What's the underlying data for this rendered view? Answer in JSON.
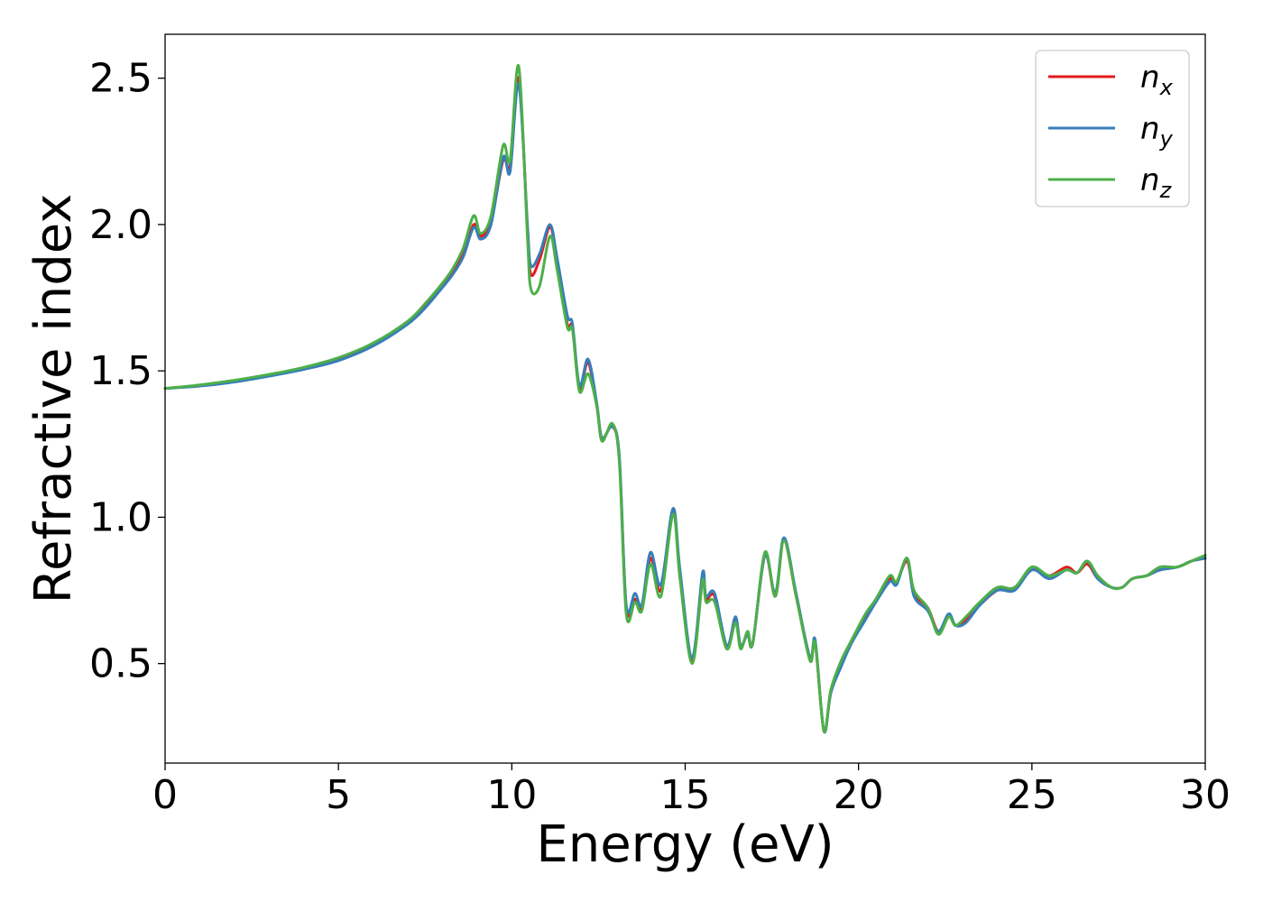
{
  "chart_data": {
    "type": "line",
    "title": "",
    "xlabel": "Energy (eV)",
    "ylabel": "Refractive index",
    "xlim": [
      0,
      30
    ],
    "ylim": [
      0.16,
      2.65
    ],
    "x_ticks": [
      0,
      5,
      10,
      15,
      20,
      25,
      30
    ],
    "x_tick_labels": [
      "0",
      "5",
      "10",
      "15",
      "20",
      "25",
      "30"
    ],
    "y_ticks": [
      0.5,
      1.0,
      1.5,
      2.0,
      2.5
    ],
    "y_tick_labels": [
      "0.5",
      "1.0",
      "1.5",
      "2.0",
      "2.5"
    ],
    "grid": false,
    "legend_position": "top-right",
    "series": [
      {
        "name": "n",
        "subscript": "x",
        "color": "#e41a1c",
        "x": [
          0,
          1,
          2,
          3,
          4,
          5,
          6,
          7,
          7.5,
          8,
          8.3,
          8.6,
          8.9,
          9.1,
          9.4,
          9.75,
          9.95,
          10.2,
          10.45,
          10.55,
          10.8,
          11.1,
          11.3,
          11.6,
          11.75,
          11.95,
          12.2,
          12.45,
          12.6,
          12.9,
          13.1,
          13.3,
          13.55,
          13.75,
          14.0,
          14.3,
          14.65,
          14.85,
          15.2,
          15.5,
          15.6,
          15.85,
          16.2,
          16.45,
          16.6,
          16.8,
          16.95,
          17.3,
          17.6,
          17.85,
          18.2,
          18.6,
          18.75,
          19.0,
          19.2,
          19.5,
          19.8,
          20.2,
          20.5,
          20.9,
          21.1,
          21.4,
          21.6,
          22.0,
          22.3,
          22.6,
          22.8,
          23.1,
          23.5,
          24.0,
          24.5,
          25.0,
          25.5,
          26.0,
          26.3,
          26.6,
          26.9,
          27.3,
          27.6,
          27.9,
          28.3,
          28.7,
          29.2,
          29.6,
          30.0
        ],
        "y": [
          1.44,
          1.45,
          1.465,
          1.485,
          1.51,
          1.54,
          1.59,
          1.665,
          1.72,
          1.79,
          1.84,
          1.9,
          2.0,
          1.96,
          2.01,
          2.22,
          2.2,
          2.5,
          1.99,
          1.83,
          1.88,
          1.99,
          1.88,
          1.66,
          1.65,
          1.44,
          1.53,
          1.38,
          1.27,
          1.31,
          1.2,
          0.69,
          0.72,
          0.69,
          0.86,
          0.75,
          1.02,
          0.8,
          0.51,
          0.8,
          0.72,
          0.73,
          0.56,
          0.65,
          0.56,
          0.6,
          0.57,
          0.87,
          0.73,
          0.92,
          0.73,
          0.52,
          0.57,
          0.27,
          0.4,
          0.5,
          0.58,
          0.66,
          0.72,
          0.79,
          0.78,
          0.85,
          0.74,
          0.69,
          0.61,
          0.66,
          0.63,
          0.65,
          0.7,
          0.75,
          0.76,
          0.82,
          0.8,
          0.83,
          0.81,
          0.84,
          0.79,
          0.76,
          0.76,
          0.79,
          0.8,
          0.82,
          0.83,
          0.85,
          0.86
        ]
      },
      {
        "name": "n",
        "subscript": "y",
        "color": "#377eb8",
        "x": [
          0,
          1,
          2,
          3,
          4,
          5,
          6,
          7,
          7.5,
          8,
          8.3,
          8.6,
          8.9,
          9.1,
          9.4,
          9.75,
          9.95,
          10.2,
          10.45,
          10.55,
          10.8,
          11.1,
          11.3,
          11.6,
          11.75,
          11.95,
          12.2,
          12.45,
          12.6,
          12.9,
          13.1,
          13.3,
          13.55,
          13.75,
          14.0,
          14.3,
          14.65,
          14.85,
          15.2,
          15.5,
          15.6,
          15.85,
          16.2,
          16.45,
          16.6,
          16.8,
          16.95,
          17.3,
          17.6,
          17.85,
          18.2,
          18.6,
          18.75,
          19.0,
          19.2,
          19.5,
          19.8,
          20.2,
          20.5,
          20.9,
          21.1,
          21.4,
          21.6,
          22.0,
          22.3,
          22.6,
          22.8,
          23.1,
          23.5,
          24.0,
          24.5,
          25.0,
          25.5,
          26.0,
          26.3,
          26.6,
          26.9,
          27.3,
          27.6,
          27.9,
          28.3,
          28.7,
          29.2,
          29.6,
          30.0
        ],
        "y": [
          1.44,
          1.448,
          1.462,
          1.482,
          1.505,
          1.535,
          1.585,
          1.66,
          1.715,
          1.785,
          1.83,
          1.89,
          1.99,
          1.95,
          2.0,
          2.23,
          2.18,
          2.48,
          2.0,
          1.86,
          1.9,
          2.0,
          1.89,
          1.69,
          1.66,
          1.45,
          1.54,
          1.39,
          1.27,
          1.31,
          1.21,
          0.7,
          0.74,
          0.7,
          0.88,
          0.77,
          1.03,
          0.82,
          0.52,
          0.81,
          0.73,
          0.74,
          0.56,
          0.66,
          0.56,
          0.6,
          0.57,
          0.87,
          0.74,
          0.93,
          0.74,
          0.52,
          0.58,
          0.27,
          0.4,
          0.49,
          0.57,
          0.65,
          0.71,
          0.78,
          0.77,
          0.86,
          0.73,
          0.68,
          0.61,
          0.67,
          0.63,
          0.64,
          0.7,
          0.75,
          0.75,
          0.82,
          0.79,
          0.82,
          0.81,
          0.85,
          0.79,
          0.76,
          0.76,
          0.79,
          0.8,
          0.82,
          0.83,
          0.85,
          0.86
        ]
      },
      {
        "name": "n",
        "subscript": "z",
        "color": "#4daf4a",
        "x": [
          0,
          1,
          2,
          3,
          4,
          5,
          6,
          7,
          7.5,
          8,
          8.3,
          8.6,
          8.9,
          9.1,
          9.4,
          9.75,
          9.95,
          10.2,
          10.45,
          10.55,
          10.8,
          11.1,
          11.3,
          11.6,
          11.75,
          11.95,
          12.2,
          12.45,
          12.6,
          12.9,
          13.1,
          13.3,
          13.55,
          13.75,
          14.0,
          14.3,
          14.65,
          14.85,
          15.2,
          15.5,
          15.6,
          15.85,
          16.2,
          16.45,
          16.6,
          16.8,
          16.95,
          17.3,
          17.6,
          17.85,
          18.2,
          18.6,
          18.75,
          19.0,
          19.2,
          19.5,
          19.8,
          20.2,
          20.5,
          20.9,
          21.1,
          21.4,
          21.6,
          22.0,
          22.3,
          22.6,
          22.8,
          23.1,
          23.5,
          24.0,
          24.5,
          25.0,
          25.5,
          26.0,
          26.3,
          26.6,
          26.9,
          27.3,
          27.6,
          27.9,
          28.3,
          28.7,
          29.2,
          29.6,
          30.0
        ],
        "y": [
          1.44,
          1.452,
          1.468,
          1.488,
          1.512,
          1.545,
          1.595,
          1.67,
          1.73,
          1.8,
          1.85,
          1.92,
          2.03,
          1.97,
          2.03,
          2.27,
          2.22,
          2.54,
          1.96,
          1.78,
          1.79,
          1.96,
          1.85,
          1.65,
          1.64,
          1.43,
          1.49,
          1.38,
          1.26,
          1.32,
          1.19,
          0.67,
          0.71,
          0.68,
          0.84,
          0.73,
          1.01,
          0.79,
          0.5,
          0.78,
          0.71,
          0.71,
          0.55,
          0.64,
          0.55,
          0.61,
          0.57,
          0.88,
          0.73,
          0.92,
          0.73,
          0.51,
          0.57,
          0.27,
          0.41,
          0.51,
          0.58,
          0.67,
          0.72,
          0.8,
          0.78,
          0.86,
          0.75,
          0.69,
          0.6,
          0.66,
          0.63,
          0.66,
          0.71,
          0.76,
          0.76,
          0.83,
          0.8,
          0.82,
          0.81,
          0.85,
          0.8,
          0.76,
          0.76,
          0.79,
          0.8,
          0.83,
          0.83,
          0.85,
          0.87
        ]
      }
    ]
  }
}
